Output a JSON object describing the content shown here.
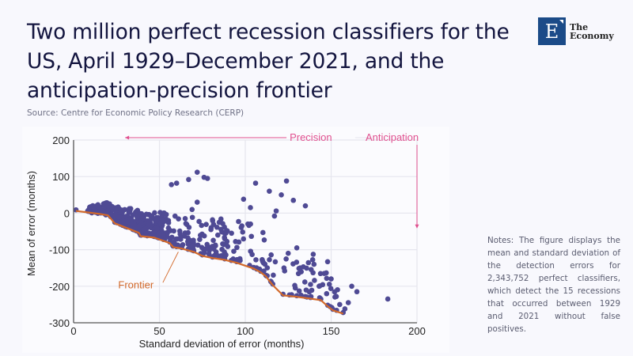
{
  "header": {
    "title": "Two million perfect recession classifiers for the US, April 1929–December 2021, and the anticipation-precision frontier",
    "source": "Source: Centre for Economic Policy Research (CERP)"
  },
  "logo": {
    "letter": "E",
    "line1": "The",
    "line2": "Economy",
    "color": "#1b4b88"
  },
  "notes": "Notes: The figure displays the mean and standard deviation of the detection errors for 2,343,752 perfect classifiers, which detect the 15 recessions that occurred between 1929 and 2021 without false positives.",
  "chart_data": {
    "type": "scatter",
    "title": "",
    "xlabel": "Standard deviation of error (months)",
    "ylabel": "Mean of error (months)",
    "xlim": [
      0,
      200
    ],
    "ylim": [
      -300,
      200
    ],
    "xticks": [
      0,
      50,
      100,
      150,
      200
    ],
    "yticks": [
      200,
      100,
      0,
      -100,
      -200,
      -300
    ],
    "grid": true,
    "colors": {
      "points": "#4f4a94",
      "frontier": "#d2692a",
      "annotation": "#e0508f",
      "axis": "#555555",
      "grid": "#e6e6ee"
    },
    "annotations": {
      "precision": "Precision",
      "anticipation": "Anticipation",
      "frontier": "Frontier"
    },
    "frontier": {
      "name": "Frontier",
      "x": [
        1.4,
        15,
        20,
        24,
        31,
        38,
        39,
        47,
        56,
        58,
        63,
        70,
        75,
        81,
        88,
        95,
        105,
        109,
        112,
        116,
        122,
        130,
        138,
        144,
        148,
        151,
        157
      ],
      "y": [
        6,
        -2,
        -6,
        -28,
        -41,
        -54,
        -63,
        -67,
        -82,
        -93,
        -97,
        -106,
        -117,
        -123,
        -128,
        -136,
        -152,
        -162,
        -173,
        -197,
        -225,
        -229,
        -234,
        -238,
        -255,
        -266,
        -275
      ]
    },
    "scatter_outliers": {
      "name": "Classifiers",
      "x": [
        72,
        76,
        78,
        67,
        60,
        57,
        106,
        114,
        124,
        128,
        135,
        121,
        99,
        103,
        117,
        118,
        183,
        162,
        165,
        160,
        153,
        150,
        143,
        146,
        138,
        132,
        125,
        130,
        98,
        92,
        88,
        84,
        80,
        65,
        69,
        72,
        110,
        140,
        155,
        158
      ],
      "y": [
        112,
        98,
        95,
        92,
        82,
        78,
        82,
        60,
        88,
        35,
        20,
        50,
        38,
        15,
        -8,
        6,
        -235,
        -200,
        -215,
        -245,
        -228,
        -180,
        -200,
        -165,
        -195,
        -150,
        -110,
        -95,
        -35,
        -55,
        -70,
        -60,
        -45,
        -15,
        10,
        30,
        -130,
        -140,
        -250,
        -262
      ]
    },
    "scatter_cloud": {
      "description": "Dense cloud of classifiers above the frontier, widening with standard deviation",
      "count_rendered": 520
    }
  }
}
